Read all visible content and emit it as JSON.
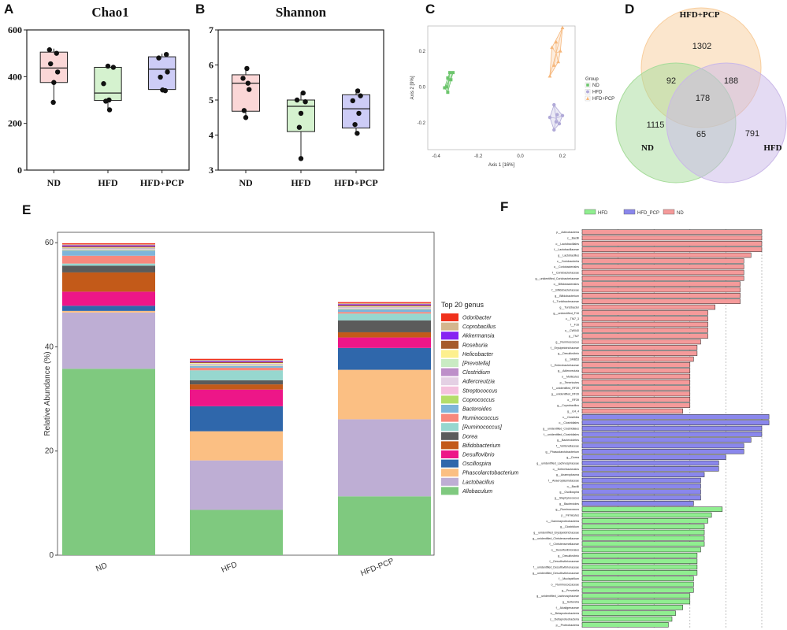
{
  "panels": {
    "A": "A",
    "B": "B",
    "C": "C",
    "D": "D",
    "E": "E",
    "F": "F"
  },
  "chart_data": [
    {
      "panel": "A",
      "type": "box",
      "title": "Chao1",
      "categories": [
        "ND",
        "HFD",
        "HFD+PCP"
      ],
      "yticks": [
        0,
        200,
        400,
        600
      ],
      "ylim": [
        0,
        600
      ],
      "colors": [
        "#fbd7d7",
        "#d5f2cf",
        "#cdccf6"
      ],
      "boxes": [
        {
          "min": 290,
          "q1": 375,
          "median": 437,
          "q3": 505,
          "max": 520
        },
        {
          "min": 258,
          "q1": 298,
          "median": 330,
          "q3": 440,
          "max": 448
        },
        {
          "min": 337,
          "q1": 345,
          "median": 432,
          "q3": 485,
          "max": 498
        }
      ],
      "points": [
        [
          [
            -0.08,
            515
          ],
          [
            0.05,
            500
          ],
          [
            -0.06,
            455
          ],
          [
            0.07,
            420
          ],
          [
            0.0,
            375
          ],
          [
            -0.01,
            290
          ]
        ],
        [
          [
            0.0,
            445
          ],
          [
            0.1,
            440
          ],
          [
            -0.08,
            370
          ],
          [
            0.02,
            300
          ],
          [
            -0.04,
            295
          ],
          [
            0.03,
            258
          ]
        ],
        [
          [
            0.08,
            495
          ],
          [
            -0.06,
            480
          ],
          [
            0.1,
            420
          ],
          [
            -0.03,
            398
          ],
          [
            0.01,
            343
          ],
          [
            0.06,
            340
          ]
        ]
      ]
    },
    {
      "panel": "B",
      "type": "box",
      "title": "Shannon",
      "categories": [
        "ND",
        "HFD",
        "HFD+PCP"
      ],
      "yticks": [
        3,
        4,
        5,
        6,
        7
      ],
      "ylim": [
        3,
        7
      ],
      "colors": [
        "#fbd7d7",
        "#d5f2cf",
        "#cdccf6"
      ],
      "boxes": [
        {
          "min": 4.5,
          "q1": 4.68,
          "median": 5.48,
          "q3": 5.72,
          "max": 5.92
        },
        {
          "min": 3.33,
          "q1": 4.1,
          "median": 4.82,
          "q3": 5.0,
          "max": 5.22
        },
        {
          "min": 4.05,
          "q1": 4.2,
          "median": 4.75,
          "q3": 5.15,
          "max": 5.27
        }
      ],
      "points": [
        [
          [
            0.02,
            5.9
          ],
          [
            -0.05,
            5.62
          ],
          [
            0.04,
            5.48
          ],
          [
            0.06,
            5.3
          ],
          [
            -0.03,
            4.7
          ],
          [
            0.0,
            4.5
          ]
        ],
        [
          [
            0.04,
            5.2
          ],
          [
            -0.07,
            5.0
          ],
          [
            0.08,
            4.95
          ],
          [
            0.0,
            4.62
          ],
          [
            -0.03,
            4.22
          ],
          [
            0.0,
            3.33
          ]
        ],
        [
          [
            0.03,
            5.26
          ],
          [
            0.08,
            5.12
          ],
          [
            -0.06,
            4.98
          ],
          [
            0.05,
            4.62
          ],
          [
            -0.02,
            4.3
          ],
          [
            0.02,
            4.05
          ]
        ]
      ]
    },
    {
      "panel": "C",
      "type": "scatter",
      "xlabel": "Axis 1 [16%]",
      "ylabel": "Axis 2 [9%]",
      "xticks": [
        -0.4,
        -0.2,
        0.0,
        0.2
      ],
      "yticks": [
        -0.2,
        0.0,
        0.2
      ],
      "xlim": [
        -0.44,
        0.26
      ],
      "ylim": [
        -0.35,
        0.34
      ],
      "legend_title": "Group",
      "series": [
        {
          "name": "ND",
          "color": "#6cc56c",
          "shape": "square",
          "points": [
            [
              -0.335,
              0.08
            ],
            [
              -0.32,
              0.08
            ],
            [
              -0.345,
              0.05
            ],
            [
              -0.36,
              -0.005
            ],
            [
              -0.345,
              -0.03
            ],
            [
              -0.33,
              0.04
            ],
            [
              -0.35,
              0.0
            ]
          ]
        },
        {
          "name": "HFD",
          "color": "#b1aad8",
          "shape": "circle",
          "points": [
            [
              0.16,
              -0.24
            ],
            [
              0.17,
              -0.195
            ],
            [
              0.185,
              -0.205
            ],
            [
              0.14,
              -0.17
            ],
            [
              0.175,
              -0.155
            ],
            [
              0.2,
              -0.16
            ],
            [
              0.16,
              -0.1
            ]
          ]
        },
        {
          "name": "HFD+PCP",
          "color": "#f6b77b",
          "shape": "triangle",
          "points": [
            [
              0.2,
              0.33
            ],
            [
              0.19,
              0.2
            ],
            [
              0.15,
              0.22
            ],
            [
              0.17,
              0.25
            ],
            [
              0.18,
              0.14
            ],
            [
              0.14,
              0.06
            ],
            [
              0.16,
              0.12
            ]
          ]
        }
      ]
    },
    {
      "panel": "D",
      "type": "venn",
      "sets": [
        {
          "name": "HFD+PCP",
          "color": "#f8cd9c",
          "only": 1302
        },
        {
          "name": "ND",
          "color": "#a6dc9a",
          "only": 1115
        },
        {
          "name": "HFD",
          "color": "#cab8e8",
          "only": 791
        }
      ],
      "intersections": {
        "ND_HFDPCP": 92,
        "HFDPCP_HFD": 188,
        "ND_HFD": 65,
        "all": 178
      }
    },
    {
      "panel": "E",
      "type": "stacked_bar",
      "ylabel": "Relative Abundance (%)",
      "categories": [
        "ND",
        "HFD",
        "HFD-PCP"
      ],
      "yticks": [
        0,
        20,
        40,
        60
      ],
      "ylim": [
        0,
        62
      ],
      "legend_title": "Top 20 genus",
      "series": [
        {
          "name": "Odoribacter",
          "color": "#f0311c",
          "values": [
            0.2,
            0.2,
            0.2
          ]
        },
        {
          "name": "Coprobacillus",
          "color": "#d4b68e",
          "values": [
            0.2,
            0.2,
            0.2
          ]
        },
        {
          "name": "Akkermansia",
          "color": "#8722f2",
          "values": [
            0.2,
            0.2,
            0.2
          ]
        },
        {
          "name": "Roseburia",
          "color": "#a65a2b",
          "values": [
            0.2,
            0.2,
            0.2
          ]
        },
        {
          "name": "Helicobacter",
          "color": "#fdf08e",
          "values": [
            0.1,
            0.1,
            0.1
          ]
        },
        {
          "name": "[Prevotella]",
          "color": "#c9ebc3",
          "values": [
            0.1,
            0.1,
            0.1
          ]
        },
        {
          "name": "Clostridium",
          "color": "#bd8fc9",
          "values": [
            0.1,
            0.1,
            0.1
          ]
        },
        {
          "name": "Adlercreutzia",
          "color": "#e4d0e4",
          "values": [
            0.1,
            0.1,
            0.1
          ]
        },
        {
          "name": "Streptococcus",
          "color": "#f4c1dd",
          "values": [
            0.1,
            0.1,
            0.1
          ]
        },
        {
          "name": "Coprococcus",
          "color": "#b4dd6a",
          "values": [
            0.1,
            0.1,
            0.1
          ]
        },
        {
          "name": "Bacteroides",
          "color": "#7eb5da",
          "values": [
            1.0,
            0.3,
            0.5
          ]
        },
        {
          "name": "Ruminococcus",
          "color": "#f8887c",
          "values": [
            1.5,
            0.5,
            0.3
          ]
        },
        {
          "name": "[Ruminococcus]",
          "color": "#97d7cf",
          "values": [
            0.4,
            1.9,
            1.3
          ]
        },
        {
          "name": "Dorea",
          "color": "#5b5b5b",
          "values": [
            1.3,
            0.8,
            2.3
          ]
        },
        {
          "name": "Bifidobacterium",
          "color": "#c35a19",
          "values": [
            3.7,
            1.0,
            1.0
          ]
        },
        {
          "name": "Desulfovibrio",
          "color": "#ed1688",
          "values": [
            2.7,
            3.2,
            2.0
          ]
        },
        {
          "name": "Oscillospira",
          "color": "#2f67ab",
          "values": [
            1.0,
            4.8,
            4.2
          ]
        },
        {
          "name": "Phascolarctobacterium",
          "color": "#fbbf83",
          "values": [
            0.3,
            5.6,
            9.5
          ]
        },
        {
          "name": "Lactobacillus",
          "color": "#beaed4",
          "values": [
            10.8,
            9.5,
            14.8
          ]
        },
        {
          "name": "Allobaculum",
          "color": "#7fc97f",
          "values": [
            35.8,
            8.7,
            11.3
          ]
        }
      ]
    },
    {
      "panel": "F",
      "type": "lefse_bar",
      "legend": [
        {
          "name": "HFD",
          "color": "#90ee90"
        },
        {
          "name": "HFD_PCP",
          "color": "#8a87ec"
        },
        {
          "name": "ND",
          "color": "#f59a9a"
        }
      ],
      "bars": [
        {
          "group": "ND",
          "label": "p__Actinobacteria",
          "value": 5.0
        },
        {
          "group": "ND",
          "label": "c__Bacilli",
          "value": 5.0
        },
        {
          "group": "ND",
          "label": "o__Lactobacillales",
          "value": 5.0
        },
        {
          "group": "ND",
          "label": "f__Lactobacillaceae",
          "value": 5.0
        },
        {
          "group": "ND",
          "label": "g__Lactobacillus",
          "value": 4.7
        },
        {
          "group": "ND",
          "label": "c__Coriobacteriia",
          "value": 4.5
        },
        {
          "group": "ND",
          "label": "o__Coriobacteriales",
          "value": 4.5
        },
        {
          "group": "ND",
          "label": "f__Coriobacteriaceae",
          "value": 4.5
        },
        {
          "group": "ND",
          "label": "g__unidentified_Coriobacteriaceae",
          "value": 4.5
        },
        {
          "group": "ND",
          "label": "o__Bifidobacteriales",
          "value": 4.4
        },
        {
          "group": "ND",
          "label": "f__Bifidobacteriaceae",
          "value": 4.4
        },
        {
          "group": "ND",
          "label": "g__Bifidobacterium",
          "value": 4.4
        },
        {
          "group": "ND",
          "label": "f__Turicibacteraceae",
          "value": 4.4
        },
        {
          "group": "ND",
          "label": "g__Turicibacter",
          "value": 3.7
        },
        {
          "group": "ND",
          "label": "g__unidentified_F16",
          "value": 3.5
        },
        {
          "group": "ND",
          "label": "c__TM7_3",
          "value": 3.5
        },
        {
          "group": "ND",
          "label": "f__F16",
          "value": 3.5
        },
        {
          "group": "ND",
          "label": "o__CW040",
          "value": 3.5
        },
        {
          "group": "ND",
          "label": "p__TM7",
          "value": 3.5
        },
        {
          "group": "ND",
          "label": "g__Ruminococcus",
          "value": 3.3
        },
        {
          "group": "ND",
          "label": "f__Erysipelotrichaceae",
          "value": 3.2
        },
        {
          "group": "ND",
          "label": "g__Desulfovibrio",
          "value": 3.2
        },
        {
          "group": "ND",
          "label": "g__SMB53",
          "value": 3.1
        },
        {
          "group": "ND",
          "label": "f__Enterobacteriaceae",
          "value": 3.0
        },
        {
          "group": "ND",
          "label": "g__Adlercreutzia",
          "value": 3.0
        },
        {
          "group": "ND",
          "label": "o__Mollicutes",
          "value": 3.0
        },
        {
          "group": "ND",
          "label": "p__Tenericutes",
          "value": 3.0
        },
        {
          "group": "ND",
          "label": "f__unidentified_RF39",
          "value": 3.0
        },
        {
          "group": "ND",
          "label": "g__unidentified_RF39",
          "value": 3.0
        },
        {
          "group": "ND",
          "label": "o__RF39",
          "value": 3.0
        },
        {
          "group": "ND",
          "label": "g__Coprobacillus",
          "value": 3.0
        },
        {
          "group": "ND",
          "label": "g__rc4_4",
          "value": 2.8
        },
        {
          "group": "HFD_PCP",
          "label": "c__Clostridia",
          "value": 5.2
        },
        {
          "group": "HFD_PCP",
          "label": "o__Clostridiales",
          "value": 5.2
        },
        {
          "group": "HFD_PCP",
          "label": "g__unidentified_Clostridiales",
          "value": 5.0
        },
        {
          "group": "HFD_PCP",
          "label": "f__unidentified_Clostridiales",
          "value": 5.0
        },
        {
          "group": "HFD_PCP",
          "label": "g__Bacteroidetes",
          "value": 4.7
        },
        {
          "group": "HFD_PCP",
          "label": "f__Veillonellaceae",
          "value": 4.5
        },
        {
          "group": "HFD_PCP",
          "label": "g__Phascolarctobacterium",
          "value": 4.5
        },
        {
          "group": "HFD_PCP",
          "label": "g__Dorea",
          "value": 4.0
        },
        {
          "group": "HFD_PCP",
          "label": "g__unidentified_Lachnospiraceae",
          "value": 3.8
        },
        {
          "group": "HFD_PCP",
          "label": "o__Deferribacterales",
          "value": 3.8
        },
        {
          "group": "HFD_PCP",
          "label": "g__Anaeroplasma",
          "value": 3.4
        },
        {
          "group": "HFD_PCP",
          "label": "f__Anaeroplasmataceae",
          "value": 3.3
        },
        {
          "group": "HFD_PCP",
          "label": "o__Bacilli",
          "value": 3.3
        },
        {
          "group": "HFD_PCP",
          "label": "g__Oscillospira",
          "value": 3.3
        },
        {
          "group": "HFD_PCP",
          "label": "g__Staphylococcus",
          "value": 3.3
        },
        {
          "group": "HFD_PCP",
          "label": "g__Bacteroides",
          "value": 3.1
        },
        {
          "group": "HFD",
          "label": "g__Ruminococcus",
          "value": 3.9
        },
        {
          "group": "HFD",
          "label": "p__Firmicutes",
          "value": 3.6
        },
        {
          "group": "HFD",
          "label": "c__Gammaproteobacteria",
          "value": 3.5
        },
        {
          "group": "HFD",
          "label": "g__Clostridium",
          "value": 3.4
        },
        {
          "group": "HFD",
          "label": "g__unidentified_Erysipelotrichaceae",
          "value": 3.4
        },
        {
          "group": "HFD",
          "label": "g__unidentified_Christensenellaceae",
          "value": 3.4
        },
        {
          "group": "HFD",
          "label": "f__Christensenellaceae",
          "value": 3.4
        },
        {
          "group": "HFD",
          "label": "o__Desulfovibrionales",
          "value": 3.3
        },
        {
          "group": "HFD",
          "label": "g__Desulfovibrio",
          "value": 3.2
        },
        {
          "group": "HFD",
          "label": "f__Desulfovibrionaceae",
          "value": 3.2
        },
        {
          "group": "HFD",
          "label": "f__unidentified_Desulfovibrionaceae",
          "value": 3.2
        },
        {
          "group": "HFD",
          "label": "g__unidentified_Desulfovibrionaceae",
          "value": 3.2
        },
        {
          "group": "HFD",
          "label": "f__Mucispirillum",
          "value": 3.1
        },
        {
          "group": "HFD",
          "label": "o__Ruminococcaceae",
          "value": 3.1
        },
        {
          "group": "HFD",
          "label": "g__Prevotella",
          "value": 3.1
        },
        {
          "group": "HFD",
          "label": "g__unidentified_Lachnospiraceae",
          "value": 3.0
        },
        {
          "group": "HFD",
          "label": "g__Sutterella",
          "value": 3.0
        },
        {
          "group": "HFD",
          "label": "f__Alcaligenaceae",
          "value": 2.8
        },
        {
          "group": "HFD",
          "label": "o__Betaproteobacteria",
          "value": 2.6
        },
        {
          "group": "HFD",
          "label": "c__Deltaproteobacteria",
          "value": 2.5
        },
        {
          "group": "HFD",
          "label": "p__Proteobacteria",
          "value": 2.4
        }
      ]
    }
  ]
}
